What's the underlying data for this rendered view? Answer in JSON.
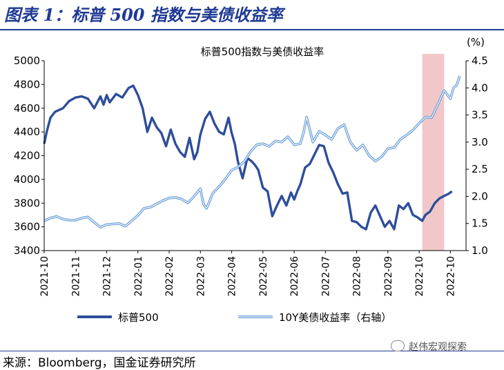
{
  "header": {
    "figure_title": "图表 1：标普 500 指数与美债收益率"
  },
  "footer": {
    "source": "来源：Bloomberg，国金证券研究所",
    "watermark": "赵伟宏观探索"
  },
  "colors": {
    "spx": "#2e4d9b",
    "yield_outer": "#6a9fd8",
    "yield_inner": "#ffffff",
    "highlight": "#f1c7c9",
    "axis": "#000000"
  },
  "chart_data": {
    "type": "line",
    "title": "标普500指数与美债收益率",
    "right_unit": "(%)",
    "x_ticks": [
      "2021-10",
      "2021-11",
      "2021-12",
      "2022-01",
      "2022-02",
      "2022-03",
      "2022-04",
      "2022-05",
      "2022-06",
      "2022-07",
      "2022-08",
      "2022-09",
      "2022-10",
      "2022-10"
    ],
    "x_range": [
      0,
      13.5
    ],
    "highlight_range": [
      12.1,
      12.8
    ],
    "left_axis": {
      "ylim": [
        3400,
        5000
      ],
      "ticks": [
        3400,
        3600,
        3800,
        4000,
        4200,
        4400,
        4600,
        4800,
        5000
      ]
    },
    "right_axis": {
      "ylim": [
        1.0,
        4.5
      ],
      "ticks": [
        "1.0",
        "1.5",
        "2.0",
        "2.5",
        "3.0",
        "3.5",
        "4.0",
        "4.5"
      ]
    },
    "legend": {
      "placement": "bottom"
    },
    "series": [
      {
        "name": "标普500",
        "axis": "left",
        "x": [
          0,
          0.08,
          0.2,
          0.35,
          0.6,
          0.8,
          1,
          1.2,
          1.4,
          1.6,
          1.8,
          1.9,
          2,
          2.1,
          2.3,
          2.5,
          2.7,
          2.85,
          3,
          3.15,
          3.3,
          3.45,
          3.6,
          3.75,
          3.9,
          4.05,
          4.2,
          4.35,
          4.5,
          4.65,
          4.8,
          4.9,
          5,
          5.15,
          5.3,
          5.45,
          5.6,
          5.75,
          5.9,
          6,
          6.1,
          6.2,
          6.35,
          6.5,
          6.65,
          6.75,
          6.85,
          7,
          7.15,
          7.3,
          7.45,
          7.6,
          7.75,
          7.9,
          8,
          8.1,
          8.2,
          8.35,
          8.5,
          8.65,
          8.8,
          8.95,
          9.1,
          9.25,
          9.4,
          9.55,
          9.7,
          9.85,
          10,
          10.15,
          10.3,
          10.45,
          10.6,
          10.75,
          10.9,
          11.05,
          11.2,
          11.35,
          11.5,
          11.65,
          11.8,
          11.95,
          12.1,
          12.2,
          12.35,
          12.5,
          12.65,
          12.8,
          12.95,
          13.05
        ],
        "values": [
          4300,
          4400,
          4520,
          4570,
          4600,
          4660,
          4690,
          4700,
          4680,
          4600,
          4700,
          4630,
          4710,
          4650,
          4720,
          4690,
          4770,
          4790,
          4710,
          4600,
          4400,
          4520,
          4440,
          4390,
          4280,
          4420,
          4300,
          4230,
          4190,
          4350,
          4170,
          4230,
          4380,
          4510,
          4570,
          4470,
          4400,
          4380,
          4520,
          4390,
          4300,
          4150,
          4010,
          4180,
          4150,
          4120,
          4080,
          3930,
          3900,
          3690,
          3780,
          3860,
          3780,
          3890,
          3830,
          3900,
          3960,
          4100,
          4130,
          4210,
          4290,
          4280,
          4140,
          4060,
          3960,
          3880,
          3890,
          3650,
          3640,
          3600,
          3580,
          3720,
          3780,
          3690,
          3600,
          3650,
          3580,
          3780,
          3750,
          3800,
          3700,
          3680,
          3650,
          3700,
          3730,
          3800,
          3840,
          3860,
          3880,
          3900
        ]
      },
      {
        "name": "10Y美债收益率（右轴）",
        "axis": "right",
        "x": [
          0,
          0.2,
          0.4,
          0.6,
          0.8,
          1,
          1.2,
          1.4,
          1.6,
          1.8,
          2,
          2.2,
          2.4,
          2.6,
          2.8,
          3,
          3.2,
          3.4,
          3.6,
          3.8,
          4,
          4.2,
          4.4,
          4.6,
          4.8,
          5,
          5.1,
          5.2,
          5.4,
          5.6,
          5.8,
          6,
          6.2,
          6.4,
          6.6,
          6.8,
          7,
          7.2,
          7.4,
          7.6,
          7.8,
          8,
          8.2,
          8.3,
          8.4,
          8.6,
          8.8,
          9,
          9.2,
          9.4,
          9.6,
          9.8,
          10,
          10.2,
          10.4,
          10.6,
          10.8,
          11,
          11.2,
          11.4,
          11.6,
          11.8,
          12,
          12.2,
          12.4,
          12.6,
          12.8,
          13,
          13.1,
          13.2,
          13.3
        ],
        "values": [
          1.55,
          1.6,
          1.63,
          1.58,
          1.56,
          1.56,
          1.6,
          1.62,
          1.52,
          1.43,
          1.48,
          1.49,
          1.5,
          1.45,
          1.55,
          1.65,
          1.78,
          1.8,
          1.86,
          1.92,
          1.97,
          1.98,
          1.95,
          1.88,
          2.0,
          2.14,
          1.85,
          1.78,
          2.06,
          2.18,
          2.32,
          2.48,
          2.54,
          2.64,
          2.82,
          2.95,
          2.97,
          2.92,
          3.02,
          3.0,
          3.1,
          2.95,
          2.97,
          3.18,
          3.46,
          3.0,
          3.2,
          3.13,
          3.05,
          3.25,
          3.32,
          3.0,
          2.85,
          2.95,
          2.75,
          2.65,
          2.73,
          2.88,
          2.9,
          3.05,
          3.13,
          3.22,
          3.35,
          3.46,
          3.45,
          3.7,
          3.95,
          3.8,
          4.0,
          4.05,
          4.22
        ]
      }
    ]
  }
}
